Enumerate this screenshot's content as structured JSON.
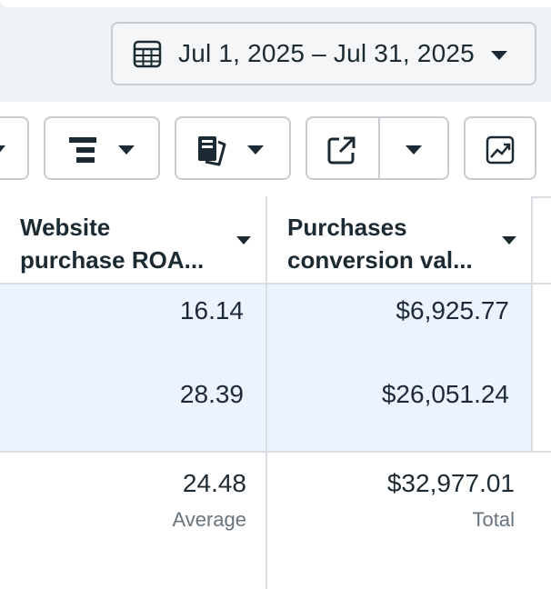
{
  "date_range": {
    "label": "Jul 1, 2025 – Jul 31, 2025"
  },
  "toolbar": {
    "icons": [
      "breakdown-icon",
      "reports-icon",
      "export-icon",
      "chart-icon"
    ]
  },
  "table": {
    "columns": [
      {
        "label_line1": "Website",
        "label_line2": "purchase ROA..."
      },
      {
        "label_line1": "Purchases",
        "label_line2": "conversion val..."
      }
    ],
    "rows": [
      {
        "roas": "16.14",
        "conversion_value": "$6,925.77"
      },
      {
        "roas": "28.39",
        "conversion_value": "$26,051.24"
      }
    ],
    "summary": {
      "roas": "24.48",
      "roas_label": "Average",
      "conversion_value": "$32,977.01",
      "conversion_value_label": "Total"
    }
  },
  "colors": {
    "accent_row_bg": "#ebf3fe",
    "text": "#1c2b33",
    "muted": "#67737d",
    "border": "#c9cdd2"
  }
}
